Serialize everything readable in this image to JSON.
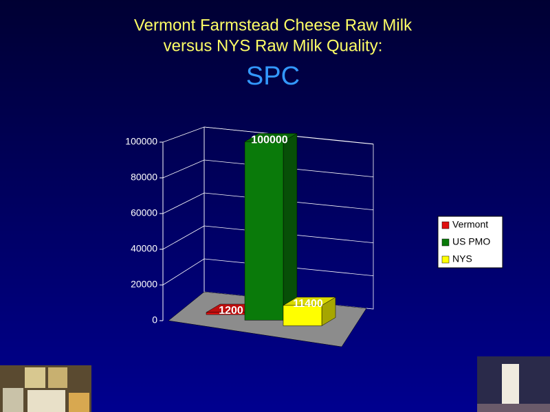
{
  "chart_data": {
    "type": "bar",
    "title": [
      "Vermont Farmstead Cheese Raw Milk",
      "versus NYS Raw Milk Quality:"
    ],
    "subtitle": "SPC",
    "series": [
      {
        "name": "Vermont",
        "color": "#e01010",
        "values": [
          1200
        ]
      },
      {
        "name": "US PMO",
        "color": "#0a7a0a",
        "values": [
          100000
        ]
      },
      {
        "name": "NYS",
        "color": "#ffff00",
        "values": [
          11400
        ]
      }
    ],
    "ylim": [
      0,
      100000
    ],
    "yticks": [
      0,
      20000,
      40000,
      60000,
      80000,
      100000
    ],
    "grid": true,
    "legend": "right"
  }
}
